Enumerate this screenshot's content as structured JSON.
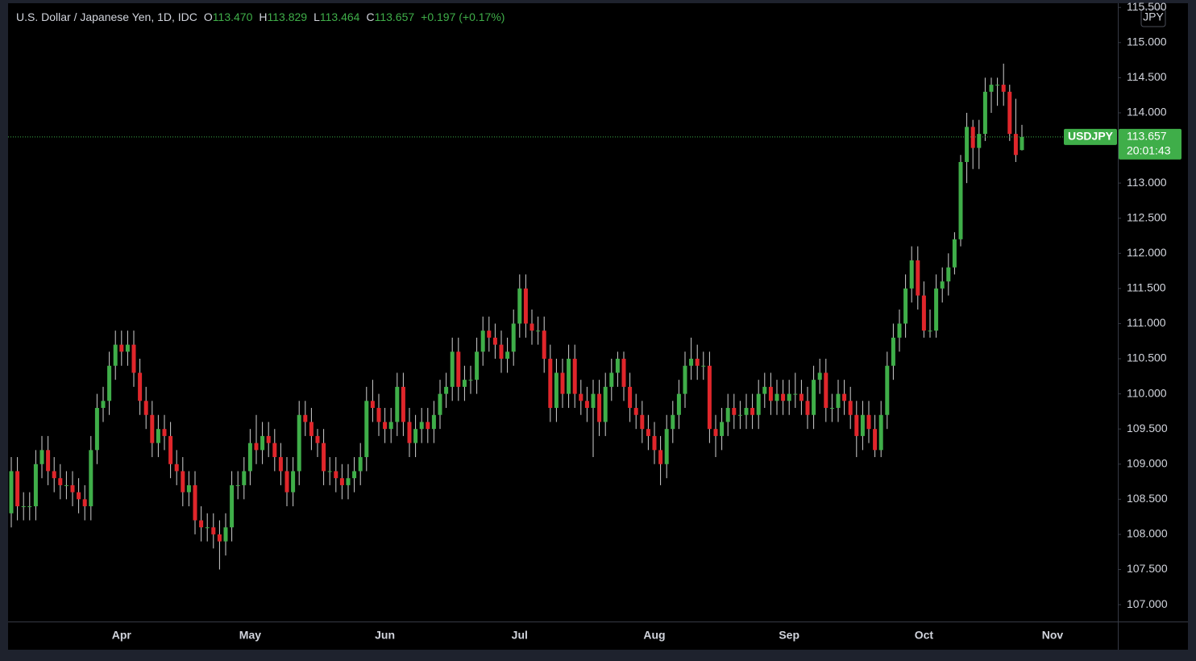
{
  "chart_data": {
    "type": "candlestick",
    "title": "U.S. Dollar / Japanese Yen, 1D, IDC",
    "ohlc_header": [
      {
        "key": "O",
        "value": "113.470"
      },
      {
        "key": "H",
        "value": "113.829"
      },
      {
        "key": "L",
        "value": "113.464"
      },
      {
        "key": "C",
        "value": "113.657"
      }
    ],
    "change": "+0.197 (+0.17%)",
    "currency": "JPY",
    "symbol": "USDJPY",
    "last_price_label": "113.657",
    "countdown": "20:01:43",
    "up_color": "#3fae49",
    "down_color": "#e0262b",
    "wick_color": "#d0d0d0",
    "ylim": [
      106.76,
      115.56
    ],
    "yticks": [
      {
        "value": 107,
        "label": "107.000"
      },
      {
        "value": 107.5,
        "label": "107.500"
      },
      {
        "value": 108,
        "label": "108.000"
      },
      {
        "value": 108.5,
        "label": "108.500"
      },
      {
        "value": 109,
        "label": "109.000"
      },
      {
        "value": 109.5,
        "label": "109.500"
      },
      {
        "value": 110,
        "label": "110.000"
      },
      {
        "value": 110.5,
        "label": "110.500"
      },
      {
        "value": 111,
        "label": "111.000"
      },
      {
        "value": 111.5,
        "label": "111.500"
      },
      {
        "value": 112,
        "label": "112.000"
      },
      {
        "value": 112.5,
        "label": "112.500"
      },
      {
        "value": 113,
        "label": "113.000"
      },
      {
        "value": 113.5,
        "label": "113.500"
      },
      {
        "value": 114,
        "label": "114.000"
      },
      {
        "value": 114.5,
        "label": "114.500"
      },
      {
        "value": 115,
        "label": "115.000"
      },
      {
        "value": 115.5,
        "label": "115.500"
      }
    ],
    "categories": [
      null,
      null,
      null,
      null,
      null,
      null,
      null,
      null,
      null,
      null,
      null,
      null,
      null,
      null,
      null,
      null,
      null,
      null,
      "Apr",
      null,
      null,
      null,
      null,
      null,
      null,
      null,
      null,
      null,
      null,
      null,
      null,
      null,
      null,
      null,
      null,
      null,
      null,
      null,
      null,
      "May",
      null,
      null,
      null,
      null,
      null,
      null,
      null,
      null,
      null,
      null,
      null,
      null,
      null,
      null,
      null,
      null,
      null,
      null,
      null,
      null,
      null,
      "Jun",
      null,
      null,
      null,
      null,
      null,
      null,
      null,
      null,
      null,
      null,
      null,
      null,
      null,
      null,
      null,
      null,
      null,
      null,
      null,
      null,
      null,
      "Jul",
      null,
      null,
      null,
      null,
      null,
      null,
      null,
      null,
      null,
      null,
      null,
      null,
      null,
      null,
      null,
      null,
      null,
      null,
      null,
      null,
      null,
      "Aug",
      null,
      null,
      null,
      null,
      null,
      null,
      null,
      null,
      null,
      null,
      null,
      null,
      null,
      null,
      null,
      null,
      null,
      null,
      null,
      null,
      null,
      "Sep",
      null,
      null,
      null,
      null,
      null,
      null,
      null,
      null,
      null,
      null,
      null,
      null,
      null,
      null,
      null,
      null,
      null,
      null,
      null,
      null,
      null,
      "Oct",
      null,
      null,
      null,
      null,
      null,
      null,
      null,
      null,
      null,
      null,
      null,
      null,
      null,
      null,
      null,
      null,
      null,
      null,
      null,
      null,
      "Nov"
    ],
    "open": [
      108.3,
      108.9,
      108.4,
      108.4,
      108.4,
      109.0,
      109.2,
      108.9,
      108.8,
      108.7,
      108.7,
      108.6,
      108.5,
      108.4,
      109.2,
      109.8,
      109.9,
      110.4,
      110.7,
      110.6,
      110.7,
      110.3,
      109.9,
      109.7,
      109.3,
      109.5,
      109.4,
      109.0,
      108.9,
      108.6,
      108.7,
      108.2,
      108.1,
      108.1,
      108.0,
      107.9,
      108.1,
      108.7,
      108.7,
      108.9,
      109.3,
      109.2,
      109.4,
      109.3,
      109.1,
      108.9,
      108.6,
      108.9,
      109.7,
      109.6,
      109.4,
      109.3,
      108.9,
      108.9,
      108.8,
      108.7,
      108.8,
      108.9,
      109.1,
      109.9,
      109.8,
      109.6,
      109.5,
      109.6,
      110.1,
      109.6,
      109.3,
      109.5,
      109.6,
      109.5,
      109.7,
      110.0,
      110.1,
      110.6,
      110.1,
      110.2,
      110.2,
      110.6,
      110.9,
      110.8,
      110.7,
      110.5,
      110.6,
      111.0,
      111.5,
      111.0,
      110.9,
      110.9,
      110.5,
      109.8,
      110.3,
      110.0,
      110.5,
      110.0,
      109.9,
      109.8,
      110.0,
      109.6,
      110.1,
      110.3,
      110.5,
      110.1,
      109.8,
      109.7,
      109.5,
      109.4,
      109.2,
      109.0,
      109.5,
      109.7,
      110.0,
      110.4,
      110.5,
      110.4,
      110.4,
      109.5,
      109.4,
      109.6,
      109.8,
      109.7,
      109.7,
      109.8,
      109.7,
      110.0,
      110.1,
      109.9,
      110.0,
      109.9,
      110.0,
      110.0,
      109.9,
      109.7,
      110.2,
      110.3,
      109.8,
      109.8,
      110.0,
      109.9,
      109.7,
      109.4,
      109.7,
      109.5,
      109.2,
      109.7,
      110.4,
      110.8,
      111.0,
      111.5,
      111.9,
      111.4,
      110.9,
      110.9,
      111.5,
      111.6,
      111.8,
      112.2,
      113.3,
      113.8,
      113.5,
      113.7,
      114.3,
      114.4,
      114.4,
      114.3,
      113.7,
      113.47,
      null,
      null,
      null,
      null,
      null
    ],
    "high": [
      109.1,
      109.1,
      108.6,
      108.6,
      109.2,
      109.4,
      109.4,
      109.1,
      109.0,
      108.9,
      108.9,
      108.8,
      108.7,
      109.4,
      110.0,
      110.1,
      110.6,
      110.9,
      110.9,
      110.9,
      110.9,
      110.5,
      110.1,
      109.9,
      109.7,
      109.7,
      109.6,
      109.2,
      109.1,
      108.9,
      108.9,
      108.4,
      108.3,
      108.3,
      108.2,
      108.3,
      108.9,
      108.9,
      109.1,
      109.5,
      109.7,
      109.6,
      109.6,
      109.5,
      109.3,
      109.1,
      109.1,
      109.9,
      109.9,
      109.8,
      109.5,
      109.5,
      109.1,
      109.1,
      109.0,
      109.0,
      109.1,
      109.3,
      110.1,
      110.2,
      110.0,
      109.8,
      109.8,
      110.3,
      110.3,
      109.8,
      109.7,
      109.8,
      109.8,
      109.9,
      110.2,
      110.3,
      110.8,
      110.8,
      110.4,
      110.4,
      110.8,
      111.1,
      111.1,
      111.0,
      110.9,
      110.8,
      111.2,
      111.7,
      111.7,
      111.2,
      111.1,
      111.1,
      110.7,
      110.5,
      110.5,
      110.7,
      110.7,
      110.2,
      110.1,
      110.2,
      110.2,
      110.3,
      110.5,
      110.6,
      110.6,
      110.3,
      110.0,
      109.9,
      109.7,
      109.6,
      109.4,
      109.7,
      109.9,
      110.2,
      110.6,
      110.8,
      110.7,
      110.6,
      110.6,
      109.7,
      109.8,
      110.0,
      110.0,
      109.9,
      110.0,
      110.0,
      110.2,
      110.3,
      110.3,
      110.2,
      110.2,
      110.2,
      110.3,
      110.2,
      110.1,
      110.4,
      110.5,
      110.5,
      110.0,
      110.2,
      110.2,
      110.1,
      109.9,
      109.9,
      109.9,
      109.7,
      109.9,
      110.6,
      111.0,
      111.2,
      111.7,
      112.1,
      112.1,
      111.6,
      111.2,
      111.7,
      111.8,
      112.0,
      112.3,
      113.4,
      114.0,
      113.9,
      113.9,
      114.5,
      114.5,
      114.5,
      114.7,
      114.4,
      114.2,
      113.829,
      null,
      null,
      null,
      null,
      null
    ],
    "low": [
      108.1,
      108.2,
      108.2,
      108.2,
      108.2,
      108.8,
      108.7,
      108.6,
      108.5,
      108.5,
      108.4,
      108.3,
      108.2,
      108.2,
      109.0,
      109.6,
      109.7,
      110.2,
      110.4,
      110.4,
      110.1,
      109.7,
      109.5,
      109.1,
      109.1,
      109.2,
      108.8,
      108.7,
      108.4,
      108.4,
      108.0,
      107.9,
      107.9,
      107.8,
      107.5,
      107.7,
      107.9,
      108.5,
      108.5,
      108.7,
      109.0,
      109.0,
      109.1,
      108.9,
      108.7,
      108.4,
      108.4,
      108.7,
      109.4,
      109.2,
      109.1,
      108.7,
      108.7,
      108.6,
      108.5,
      108.5,
      108.6,
      108.7,
      108.9,
      109.6,
      109.4,
      109.3,
      109.3,
      109.4,
      109.4,
      109.1,
      109.1,
      109.3,
      109.3,
      109.3,
      109.5,
      109.8,
      109.9,
      109.9,
      109.9,
      110.0,
      110.0,
      110.4,
      110.6,
      110.5,
      110.3,
      110.3,
      110.4,
      110.8,
      110.8,
      110.7,
      110.7,
      110.3,
      109.6,
      109.6,
      109.8,
      109.8,
      109.8,
      109.7,
      109.6,
      109.1,
      109.4,
      109.4,
      109.9,
      110.1,
      109.9,
      109.6,
      109.5,
      109.3,
      109.2,
      109.0,
      108.7,
      108.8,
      109.3,
      109.5,
      109.8,
      110.2,
      110.2,
      110.2,
      109.3,
      109.1,
      109.2,
      109.4,
      109.5,
      109.5,
      109.5,
      109.5,
      109.5,
      109.8,
      109.7,
      109.7,
      109.7,
      109.7,
      109.8,
      109.7,
      109.5,
      109.5,
      110.0,
      109.6,
      109.6,
      109.6,
      109.7,
      109.5,
      109.1,
      109.2,
      109.3,
      109.1,
      109.1,
      109.5,
      110.2,
      110.6,
      110.8,
      111.3,
      111.2,
      110.8,
      110.8,
      110.8,
      111.3,
      111.4,
      111.7,
      112.1,
      113.0,
      113.2,
      113.2,
      113.6,
      114.0,
      114.1,
      114.1,
      113.6,
      113.3,
      113.464,
      null,
      null,
      null,
      null,
      null
    ],
    "close": [
      108.9,
      108.4,
      108.4,
      108.4,
      109.0,
      109.2,
      108.9,
      108.8,
      108.7,
      108.7,
      108.6,
      108.5,
      108.4,
      109.2,
      109.8,
      109.9,
      110.4,
      110.7,
      110.6,
      110.7,
      110.3,
      109.9,
      109.7,
      109.3,
      109.5,
      109.4,
      109.0,
      108.9,
      108.6,
      108.7,
      108.2,
      108.1,
      108.1,
      108.0,
      107.9,
      108.1,
      108.7,
      108.7,
      108.9,
      109.3,
      109.2,
      109.4,
      109.3,
      109.1,
      108.9,
      108.6,
      108.9,
      109.7,
      109.6,
      109.4,
      109.3,
      108.9,
      108.9,
      108.8,
      108.7,
      108.8,
      108.9,
      109.1,
      109.9,
      109.8,
      109.6,
      109.5,
      109.6,
      110.1,
      109.6,
      109.3,
      109.5,
      109.6,
      109.5,
      109.7,
      110.0,
      110.1,
      110.6,
      110.1,
      110.2,
      110.2,
      110.6,
      110.9,
      110.8,
      110.7,
      110.5,
      110.6,
      111.0,
      111.5,
      111.0,
      110.9,
      110.9,
      110.5,
      109.8,
      110.3,
      110.0,
      110.5,
      110.0,
      109.9,
      109.8,
      110.0,
      109.6,
      110.1,
      110.3,
      110.5,
      110.1,
      109.8,
      109.7,
      109.5,
      109.4,
      109.2,
      109.0,
      109.5,
      109.7,
      110.0,
      110.4,
      110.5,
      110.4,
      110.4,
      109.5,
      109.4,
      109.6,
      109.8,
      109.7,
      109.7,
      109.8,
      109.7,
      110.0,
      110.1,
      109.9,
      110.0,
      109.9,
      110.0,
      110.0,
      109.9,
      109.7,
      110.2,
      110.3,
      109.8,
      109.8,
      110.0,
      109.9,
      109.7,
      109.4,
      109.7,
      109.5,
      109.2,
      109.7,
      110.4,
      110.8,
      111.0,
      111.5,
      111.9,
      111.4,
      110.9,
      110.9,
      111.5,
      111.6,
      111.8,
      112.2,
      113.3,
      113.8,
      113.5,
      113.7,
      114.3,
      114.4,
      114.4,
      114.3,
      113.7,
      113.4,
      113.657,
      null,
      null,
      null,
      null,
      null
    ]
  }
}
